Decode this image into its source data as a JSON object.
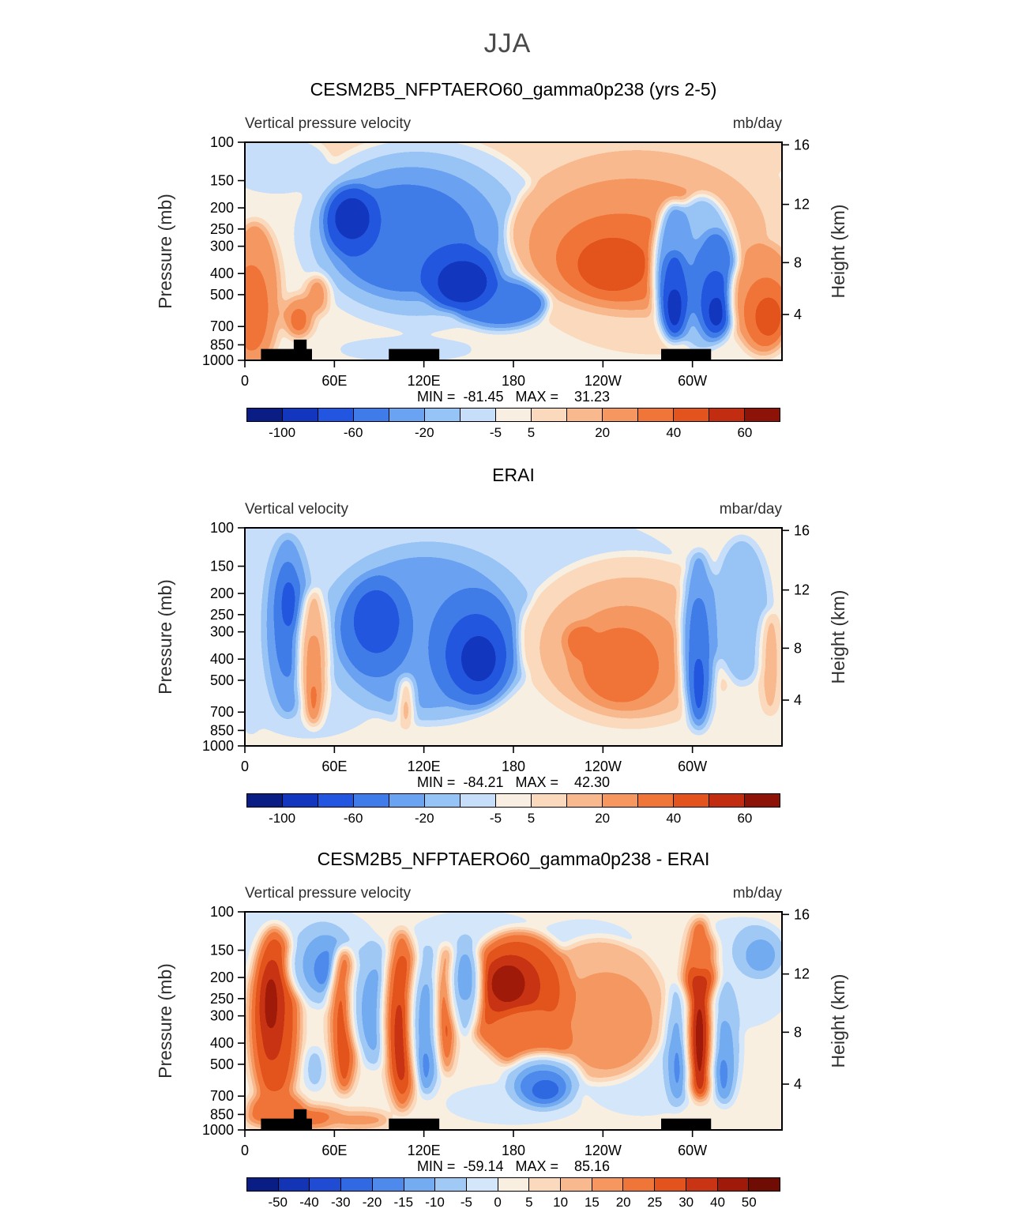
{
  "figure": {
    "title": "JJA"
  },
  "axes": {
    "pressure": {
      "labels": [
        "100",
        "150",
        "200",
        "250",
        "300",
        "400",
        "500",
        "700",
        "850",
        "1000"
      ],
      "fracs": [
        0,
        0.176,
        0.301,
        0.398,
        0.477,
        0.602,
        0.699,
        0.845,
        0.929,
        1
      ]
    },
    "height": {
      "labels": [
        "16",
        "12",
        "8",
        "4"
      ],
      "fracs": [
        0.012,
        0.285,
        0.552,
        0.79
      ]
    },
    "lon": {
      "labels": [
        "0",
        "60E",
        "120E",
        "180",
        "120W",
        "60W"
      ],
      "fracs": [
        0,
        0.1667,
        0.3333,
        0.5,
        0.6667,
        0.8333
      ]
    }
  },
  "chart_data": [
    {
      "type": "filled-contour",
      "title": "CESM2B5_NFPTAERO60_gamma0p238 (yrs 2-5)",
      "subtitle_left": "Vertical pressure velocity",
      "subtitle_right": "mb/day",
      "ylabel_left": "Pressure (mb)",
      "ylabel_right": "Height (km)",
      "min": -81.45,
      "max": 31.23,
      "stats_text": "MIN =  -81.45   MAX =    31.23",
      "levels": [
        -100,
        -80,
        -60,
        -40,
        -20,
        -10,
        -5,
        5,
        10,
        20,
        30,
        40,
        50,
        60
      ],
      "palette": [
        "#0a1d85",
        "#1236bd",
        "#2356e0",
        "#3f7ce9",
        "#6aa3f1",
        "#97c4f6",
        "#c6def9",
        "#f8efe2",
        "#fbd9bc",
        "#f9b98e",
        "#f69760",
        "#f07538",
        "#e3531d",
        "#c22d12",
        "#8d1207"
      ],
      "cb_labels": [
        "-100",
        "-60",
        "-20",
        "-5",
        "5",
        "20",
        "40",
        "60"
      ],
      "cb_fracs": [
        0.0667,
        0.2,
        0.3333,
        0.4667,
        0.5333,
        0.6667,
        0.8,
        0.9333
      ],
      "base_level": 7,
      "blobs": [
        [
          0.5,
          0.03,
          0.62,
          0.16,
          8
        ],
        [
          0.76,
          0.45,
          0.28,
          0.52,
          8
        ],
        [
          0.06,
          0.1,
          0.1,
          0.14,
          6
        ],
        [
          0.33,
          0.42,
          0.24,
          0.45,
          6
        ],
        [
          0.32,
          0.42,
          0.2,
          0.38,
          5
        ],
        [
          0.31,
          0.42,
          0.165,
          0.31,
          4
        ],
        [
          0.3,
          0.44,
          0.13,
          0.25,
          3
        ],
        [
          0.475,
          0.74,
          0.09,
          0.12,
          3
        ],
        [
          0.2,
          0.36,
          0.055,
          0.17,
          2
        ],
        [
          0.2,
          0.35,
          0.034,
          0.1,
          1
        ],
        [
          0.4,
          0.62,
          0.075,
          0.16,
          2
        ],
        [
          0.405,
          0.64,
          0.048,
          0.1,
          1
        ],
        [
          0.3,
          0.95,
          0.13,
          0.06,
          6
        ],
        [
          0.018,
          0.7,
          0.05,
          0.34,
          10
        ],
        [
          0.012,
          0.76,
          0.03,
          0.2,
          11
        ],
        [
          0.1,
          0.8,
          0.03,
          0.1,
          10
        ],
        [
          0.135,
          0.7,
          0.022,
          0.09,
          10
        ],
        [
          0.1,
          0.82,
          0.017,
          0.06,
          11
        ],
        [
          0.73,
          0.42,
          0.24,
          0.38,
          9
        ],
        [
          0.72,
          0.47,
          0.19,
          0.3,
          10
        ],
        [
          0.7,
          0.53,
          0.12,
          0.2,
          11
        ],
        [
          0.685,
          0.56,
          0.065,
          0.12,
          12
        ],
        [
          0.85,
          0.6,
          0.068,
          0.36,
          5
        ],
        [
          0.8,
          0.6,
          0.04,
          0.33,
          4
        ],
        [
          0.8,
          0.7,
          0.027,
          0.2,
          2
        ],
        [
          0.8,
          0.76,
          0.017,
          0.1,
          1
        ],
        [
          0.876,
          0.66,
          0.045,
          0.26,
          3
        ],
        [
          0.876,
          0.73,
          0.028,
          0.15,
          2
        ],
        [
          0.878,
          0.78,
          0.017,
          0.08,
          1
        ],
        [
          0.965,
          0.72,
          0.06,
          0.26,
          10
        ],
        [
          0.97,
          0.78,
          0.04,
          0.16,
          11
        ],
        [
          0.975,
          0.8,
          0.024,
          0.09,
          12
        ]
      ],
      "topo": [
        [
          0.03,
          0.125,
          0.948
        ],
        [
          0.091,
          0.115,
          0.905
        ],
        [
          0.268,
          0.362,
          0.948
        ],
        [
          0.775,
          0.868,
          0.948
        ]
      ]
    },
    {
      "type": "filled-contour",
      "title": "ERAI",
      "subtitle_left": "Vertical velocity",
      "subtitle_right": "mbar/day",
      "ylabel_left": "Pressure (mb)",
      "ylabel_right": "Height (km)",
      "min": -84.21,
      "max": 42.3,
      "stats_text": "MIN =  -84.21   MAX =    42.30",
      "levels": [
        -100,
        -80,
        -60,
        -40,
        -20,
        -10,
        -5,
        5,
        10,
        20,
        30,
        40,
        50,
        60
      ],
      "palette": [
        "#0a1d85",
        "#1236bd",
        "#2356e0",
        "#3f7ce9",
        "#6aa3f1",
        "#97c4f6",
        "#c6def9",
        "#f8efe2",
        "#fbd9bc",
        "#f9b98e",
        "#f69760",
        "#f07538",
        "#e3531d",
        "#c22d12",
        "#8d1207"
      ],
      "cb_labels": [
        "-100",
        "-60",
        "-20",
        "-5",
        "5",
        "20",
        "40",
        "60"
      ],
      "cb_fracs": [
        0.0667,
        0.2,
        0.3333,
        0.4667,
        0.5333,
        0.6667,
        0.8,
        0.9333
      ],
      "base_level": 7,
      "blobs": [
        [
          0.36,
          0.25,
          0.47,
          0.4,
          6
        ],
        [
          0.12,
          0.55,
          0.18,
          0.42,
          6
        ],
        [
          0.34,
          0.48,
          0.21,
          0.42,
          5
        ],
        [
          0.335,
          0.48,
          0.17,
          0.35,
          4
        ],
        [
          0.245,
          0.45,
          0.07,
          0.24,
          3
        ],
        [
          0.245,
          0.43,
          0.044,
          0.15,
          2
        ],
        [
          0.425,
          0.55,
          0.085,
          0.28,
          3
        ],
        [
          0.43,
          0.58,
          0.058,
          0.19,
          2
        ],
        [
          0.435,
          0.6,
          0.034,
          0.11,
          1
        ],
        [
          0.08,
          0.45,
          0.045,
          0.42,
          4
        ],
        [
          0.08,
          0.42,
          0.027,
          0.28,
          3
        ],
        [
          0.082,
          0.35,
          0.016,
          0.12,
          2
        ],
        [
          0.128,
          0.6,
          0.028,
          0.32,
          9
        ],
        [
          0.128,
          0.68,
          0.017,
          0.2,
          10
        ],
        [
          0.128,
          0.8,
          0.01,
          0.1,
          11
        ],
        [
          0.3,
          0.8,
          0.012,
          0.12,
          9
        ],
        [
          0.3,
          0.85,
          0.008,
          0.06,
          10
        ],
        [
          0.72,
          0.52,
          0.21,
          0.4,
          8
        ],
        [
          0.72,
          0.55,
          0.17,
          0.32,
          9
        ],
        [
          0.71,
          0.6,
          0.11,
          0.24,
          10
        ],
        [
          0.7,
          0.63,
          0.07,
          0.17,
          11
        ],
        [
          0.625,
          0.52,
          0.03,
          0.08,
          11
        ],
        [
          0.925,
          0.38,
          0.055,
          0.34,
          5
        ],
        [
          0.845,
          0.52,
          0.035,
          0.42,
          4
        ],
        [
          0.845,
          0.6,
          0.022,
          0.3,
          3
        ],
        [
          0.845,
          0.72,
          0.013,
          0.15,
          2
        ],
        [
          0.978,
          0.62,
          0.018,
          0.24,
          9
        ],
        [
          0.012,
          0.82,
          0.022,
          0.14,
          6
        ]
      ],
      "topo": []
    },
    {
      "type": "filled-contour",
      "title": "CESM2B5_NFPTAERO60_gamma0p238 - ERAI",
      "subtitle_left": "Vertical pressure velocity",
      "subtitle_right": "mb/day",
      "ylabel_left": "Pressure (mb)",
      "ylabel_right": "Height (km)",
      "min": -59.14,
      "max": 85.16,
      "stats_text": "MIN =  -59.14   MAX =    85.16",
      "levels": [
        -50,
        -40,
        -30,
        -20,
        -15,
        -10,
        -5,
        0,
        5,
        10,
        15,
        20,
        25,
        30,
        40,
        50
      ],
      "palette": [
        "#0a1d85",
        "#1334b4",
        "#1f4cd3",
        "#3069e1",
        "#4d8aeb",
        "#74acf2",
        "#a0c9f6",
        "#d3e6fa",
        "#f9efe1",
        "#fbd9bc",
        "#f9b98e",
        "#f69760",
        "#f07538",
        "#e3531d",
        "#c93414",
        "#a01a0a",
        "#6f0c04"
      ],
      "cb_labels": [
        "-50",
        "-40",
        "-30",
        "-20",
        "-15",
        "-10",
        "-5",
        "0",
        "5",
        "10",
        "15",
        "20",
        "25",
        "30",
        "40",
        "50"
      ],
      "cb_fracs": [
        0.0588,
        0.1176,
        0.1765,
        0.2353,
        0.2941,
        0.3529,
        0.4118,
        0.4706,
        0.5294,
        0.5882,
        0.6471,
        0.7059,
        0.7647,
        0.8235,
        0.8824,
        0.9412
      ],
      "base_level": 8,
      "blobs": [
        [
          0.1,
          0.15,
          0.15,
          0.2,
          7
        ],
        [
          0.43,
          0.12,
          0.13,
          0.13,
          7
        ],
        [
          0.92,
          0.28,
          0.11,
          0.26,
          7
        ],
        [
          0.74,
          0.78,
          0.11,
          0.16,
          7
        ],
        [
          0.5,
          0.88,
          0.13,
          0.1,
          7
        ],
        [
          0.63,
          0.15,
          0.1,
          0.12,
          7
        ],
        [
          0.66,
          0.45,
          0.125,
          0.33,
          10
        ],
        [
          0.672,
          0.5,
          0.085,
          0.22,
          11
        ],
        [
          0.51,
          0.38,
          0.105,
          0.3,
          12
        ],
        [
          0.505,
          0.36,
          0.08,
          0.22,
          13
        ],
        [
          0.495,
          0.34,
          0.054,
          0.14,
          14
        ],
        [
          0.49,
          0.33,
          0.031,
          0.085,
          15
        ],
        [
          0.53,
          0.58,
          0.08,
          0.14,
          12
        ],
        [
          0.555,
          0.78,
          0.075,
          0.13,
          6
        ],
        [
          0.555,
          0.8,
          0.05,
          0.09,
          4
        ],
        [
          0.56,
          0.82,
          0.029,
          0.055,
          3
        ],
        [
          0.055,
          0.5,
          0.05,
          0.44,
          12
        ],
        [
          0.055,
          0.48,
          0.035,
          0.36,
          13
        ],
        [
          0.05,
          0.45,
          0.022,
          0.24,
          14
        ],
        [
          0.048,
          0.42,
          0.013,
          0.13,
          15
        ],
        [
          0.06,
          0.9,
          0.055,
          0.08,
          12
        ],
        [
          0.145,
          0.24,
          0.065,
          0.2,
          6
        ],
        [
          0.15,
          0.24,
          0.044,
          0.14,
          5
        ],
        [
          0.155,
          0.26,
          0.028,
          0.09,
          4
        ],
        [
          0.158,
          0.28,
          0.015,
          0.05,
          3
        ],
        [
          0.13,
          0.72,
          0.02,
          0.1,
          6
        ],
        [
          0.185,
          0.5,
          0.028,
          0.34,
          12
        ],
        [
          0.185,
          0.58,
          0.016,
          0.22,
          13
        ],
        [
          0.24,
          0.42,
          0.045,
          0.3,
          6
        ],
        [
          0.243,
          0.45,
          0.027,
          0.2,
          5
        ],
        [
          0.293,
          0.5,
          0.035,
          0.42,
          12
        ],
        [
          0.293,
          0.52,
          0.024,
          0.33,
          13
        ],
        [
          0.29,
          0.6,
          0.014,
          0.2,
          14
        ],
        [
          0.34,
          0.5,
          0.033,
          0.36,
          6
        ],
        [
          0.34,
          0.55,
          0.022,
          0.24,
          5
        ],
        [
          0.335,
          0.72,
          0.012,
          0.1,
          4
        ],
        [
          0.375,
          0.45,
          0.018,
          0.3,
          12
        ],
        [
          0.375,
          0.5,
          0.01,
          0.18,
          13
        ],
        [
          0.41,
          0.33,
          0.03,
          0.24,
          6
        ],
        [
          0.41,
          0.3,
          0.019,
          0.12,
          5
        ],
        [
          0.847,
          0.45,
          0.035,
          0.42,
          13
        ],
        [
          0.805,
          0.62,
          0.027,
          0.3,
          6
        ],
        [
          0.805,
          0.68,
          0.016,
          0.2,
          5
        ],
        [
          0.805,
          0.72,
          0.011,
          0.12,
          4
        ],
        [
          0.893,
          0.6,
          0.032,
          0.3,
          6
        ],
        [
          0.893,
          0.68,
          0.02,
          0.2,
          5
        ],
        [
          0.89,
          0.75,
          0.012,
          0.1,
          4
        ],
        [
          0.847,
          0.55,
          0.022,
          0.3,
          14
        ],
        [
          0.845,
          0.6,
          0.013,
          0.18,
          15
        ],
        [
          0.85,
          0.18,
          0.028,
          0.1,
          12
        ],
        [
          0.955,
          0.18,
          0.05,
          0.13,
          6
        ],
        [
          0.96,
          0.2,
          0.03,
          0.08,
          5
        ],
        [
          0.1,
          0.945,
          0.1,
          0.055,
          12
        ],
        [
          0.21,
          0.955,
          0.06,
          0.04,
          11
        ]
      ],
      "topo": [
        [
          0.03,
          0.125,
          0.948
        ],
        [
          0.091,
          0.115,
          0.905
        ],
        [
          0.268,
          0.362,
          0.948
        ],
        [
          0.775,
          0.868,
          0.948
        ]
      ]
    }
  ]
}
